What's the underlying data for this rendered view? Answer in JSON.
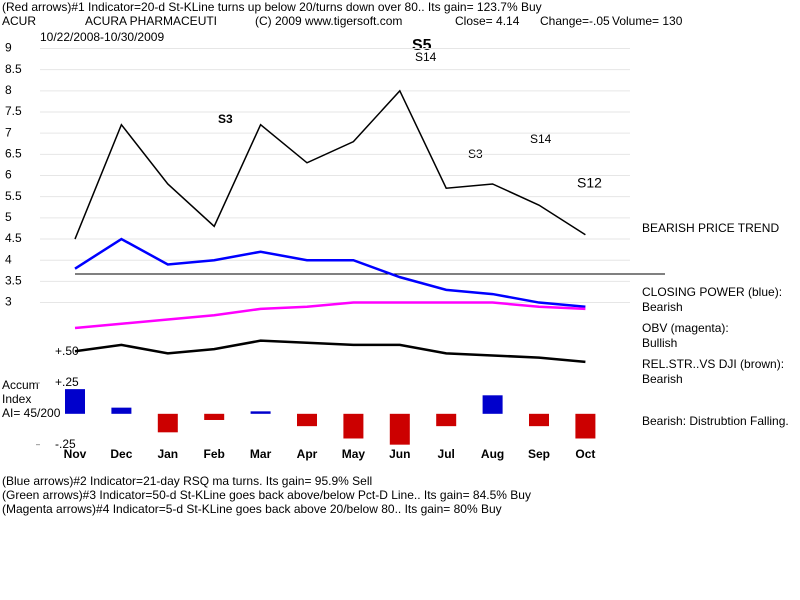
{
  "header": {
    "line1": "(Red arrows)#1 Indicator=20-d St-KLine turns up below 20/turns down over 80.. Its gain= 123.7% Buy",
    "symbol": "ACUR",
    "company": "ACURA PHARMACEUTI",
    "copyright": "(C) 2009 www.tigersoft.com",
    "close": "Close=  4.14",
    "change": "Change=-.05",
    "volume": "Volume= 130",
    "range": "10/22/2008-10/30/2009"
  },
  "chart_data": [
    {
      "type": "line",
      "categories": [
        "Nov",
        "Dec",
        "Jan",
        "Feb",
        "Mar",
        "Apr",
        "May",
        "Jun",
        "Jul",
        "Aug",
        "Sep",
        "Oct"
      ],
      "ylim": [
        -0.6,
        9.2
      ],
      "yticks": [
        9,
        8.5,
        8,
        7.5,
        7,
        6.5,
        6,
        5.5,
        5,
        4.5,
        4,
        3.5,
        3
      ],
      "series": [
        {
          "name": "Price",
          "color": "#000000",
          "values": [
            4.5,
            7.2,
            5.8,
            4.8,
            7.2,
            6.3,
            6.8,
            8.0,
            5.7,
            5.8,
            5.3,
            4.6
          ]
        },
        {
          "name": "CLOSING POWER (blue):",
          "color": "#0000ff",
          "values": [
            3.8,
            4.5,
            3.9,
            4.0,
            4.2,
            4.0,
            4.0,
            3.6,
            3.3,
            3.2,
            3.0,
            2.9
          ]
        },
        {
          "name": "OBV (magenta):",
          "color": "#ff00ff",
          "values": [
            2.4,
            2.5,
            2.6,
            2.7,
            2.85,
            2.9,
            3.0,
            3.0,
            3.0,
            3.0,
            2.9,
            2.85
          ]
        },
        {
          "name": "REL.STR..VS DJI (brown):",
          "color": "#000000",
          "values": [
            1.85,
            2.0,
            1.8,
            1.9,
            2.1,
            2.05,
            2.0,
            2.0,
            1.8,
            1.75,
            1.7,
            1.6
          ]
        }
      ],
      "annotations": [
        "S5",
        "S14",
        "S3",
        "S3",
        "S14",
        "S12",
        "+.50"
      ],
      "verdicts": [
        "BEARISH PRICE TREND",
        "Bearish",
        "Bullish",
        "Bearish"
      ]
    },
    {
      "type": "bar",
      "title": "Accum",
      "subtitle": "Index",
      "note": "AI= 45/200",
      "ylim": [
        -0.35,
        0.27
      ],
      "yticks": [
        {
          "value": 0.25,
          "label": "+.25"
        },
        {
          "value": -0.25,
          "label": "-.25"
        }
      ],
      "color": "#0000cc",
      "negative_color": "#cc0000",
      "values": [
        0.2,
        0.05,
        -0.15,
        -0.05,
        0.02,
        -0.1,
        -0.2,
        -0.25,
        -0.1,
        0.15,
        -0.1,
        -0.2
      ],
      "verdict": "Bearish:  Distrubtion Falling."
    }
  ],
  "footer": [
    "(Blue arrows)#2 Indicator=21-day RSQ ma turns.  Its gain= 95.9% Sell",
    "(Green arrows)#3 Indicator=50-d St-KLine goes back above/below Pct-D Line.. Its gain= 84.5% Buy",
    "(Magenta arrows)#4 Indicator=5-d St-KLine goes back above 20/below 80.. Its gain= 80% Buy"
  ]
}
